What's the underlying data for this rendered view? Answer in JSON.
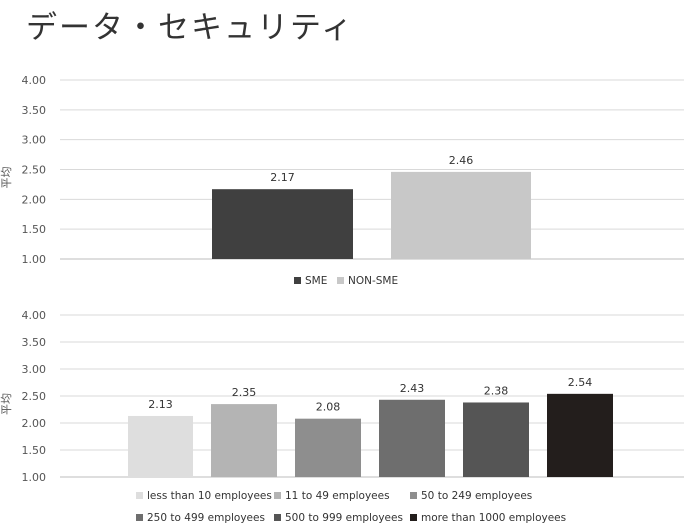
{
  "page": {
    "title": "データ・セキュリティ"
  },
  "chart_data": [
    {
      "type": "bar",
      "title": "",
      "ylabel": "平均",
      "xlabel": "",
      "ylim": [
        1.0,
        4.0
      ],
      "yticks": [
        "1.00",
        "1.50",
        "2.00",
        "2.50",
        "3.00",
        "3.50",
        "4.00"
      ],
      "grid": true,
      "legend_position": "bottom",
      "series": [
        {
          "name": "SME",
          "value": 2.17,
          "label": "2.17",
          "color": "#404040"
        },
        {
          "name": "NON-SME",
          "value": 2.46,
          "label": "2.46",
          "color": "#c8c8c8"
        }
      ]
    },
    {
      "type": "bar",
      "title": "",
      "ylabel": "平均",
      "xlabel": "",
      "ylim": [
        1.0,
        4.0
      ],
      "yticks": [
        "1.00",
        "1.50",
        "2.00",
        "2.50",
        "3.00",
        "3.50",
        "4.00"
      ],
      "grid": true,
      "legend_position": "bottom",
      "series": [
        {
          "name": "less than 10 employees",
          "value": 2.13,
          "label": "2.13",
          "color": "#dedede"
        },
        {
          "name": "11 to 49 employees",
          "value": 2.35,
          "label": "2.35",
          "color": "#b4b4b4"
        },
        {
          "name": "50 to 249 employees",
          "value": 2.08,
          "label": "2.08",
          "color": "#8e8e8e"
        },
        {
          "name": "250 to 499 employees",
          "value": 2.43,
          "label": "2.43",
          "color": "#6e6e6e"
        },
        {
          "name": "500 to 999 employees",
          "value": 2.38,
          "label": "2.38",
          "color": "#555555"
        },
        {
          "name": "more than 1000 employees",
          "value": 2.54,
          "label": "2.54",
          "color": "#231e1c"
        }
      ]
    }
  ]
}
